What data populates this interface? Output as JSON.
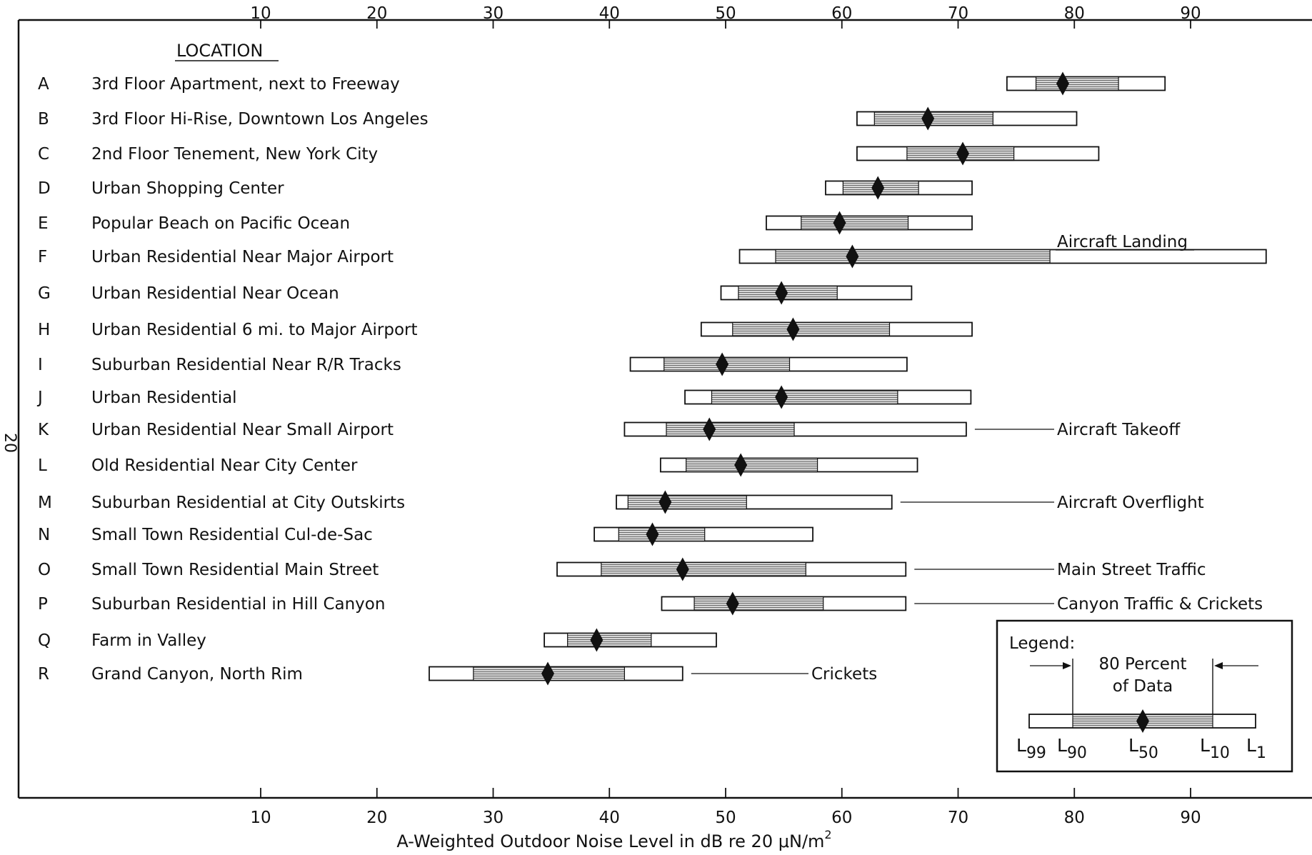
{
  "chart_data": {
    "type": "range",
    "title": "",
    "header_label": "LOCATION",
    "xlabel": "A-Weighted Outdoor Noise Level in dB re 20 μN/m",
    "xlabel_superscript": "2",
    "side_mark": "20",
    "xlim": [
      -12,
      98
    ],
    "xticks": [
      10,
      20,
      30,
      40,
      50,
      60,
      70,
      80,
      90
    ],
    "locations": [
      {
        "letter": "A",
        "name": "3rd Floor Apartment, next to Freeway",
        "L99": 74.2,
        "L90": 76.7,
        "L50": 79.0,
        "L10": 83.8,
        "L1": 87.8,
        "annotation": ""
      },
      {
        "letter": "B",
        "name": "3rd Floor Hi-Rise, Downtown Los Angeles",
        "L99": 61.3,
        "L90": 62.8,
        "L50": 67.4,
        "L10": 73.0,
        "L1": 80.2,
        "annotation": ""
      },
      {
        "letter": "C",
        "name": "2nd Floor Tenement, New York City",
        "L99": 61.3,
        "L90": 65.6,
        "L50": 70.4,
        "L10": 74.8,
        "L1": 82.1,
        "annotation": ""
      },
      {
        "letter": "D",
        "name": "Urban Shopping Center",
        "L99": 58.6,
        "L90": 60.1,
        "L50": 63.1,
        "L10": 66.6,
        "L1": 71.2,
        "annotation": ""
      },
      {
        "letter": "E",
        "name": "Popular Beach on Pacific Ocean",
        "L99": 53.5,
        "L90": 56.5,
        "L50": 59.8,
        "L10": 65.7,
        "L1": 71.2,
        "annotation": ""
      },
      {
        "letter": "F",
        "name": "Urban Residential Near Major Airport",
        "L99": 51.2,
        "L90": 54.3,
        "L50": 60.9,
        "L10": 77.9,
        "L1": 96.5,
        "annotation": "Aircraft Landing"
      },
      {
        "letter": "G",
        "name": "Urban Residential Near Ocean",
        "L99": 49.6,
        "L90": 51.1,
        "L50": 54.8,
        "L10": 59.6,
        "L1": 66.0,
        "annotation": ""
      },
      {
        "letter": "H",
        "name": "Urban Residential 6 mi. to Major Airport",
        "L99": 47.9,
        "L90": 50.6,
        "L50": 55.8,
        "L10": 64.1,
        "L1": 71.2,
        "annotation": ""
      },
      {
        "letter": "I",
        "name": "Suburban Residential Near R/R Tracks",
        "L99": 41.8,
        "L90": 44.7,
        "L50": 49.7,
        "L10": 55.5,
        "L1": 65.6,
        "annotation": ""
      },
      {
        "letter": "J",
        "name": "Urban Residential",
        "L99": 46.5,
        "L90": 48.8,
        "L50": 54.8,
        "L10": 64.8,
        "L1": 71.1,
        "annotation": ""
      },
      {
        "letter": "K",
        "name": "Urban Residential Near Small Airport",
        "L99": 41.3,
        "L90": 44.9,
        "L50": 48.6,
        "L10": 55.9,
        "L1": 70.7,
        "annotation": "Aircraft Takeoff"
      },
      {
        "letter": "L",
        "name": "Old Residential Near City Center",
        "L99": 44.4,
        "L90": 46.6,
        "L50": 51.3,
        "L10": 57.9,
        "L1": 66.5,
        "annotation": ""
      },
      {
        "letter": "M",
        "name": "Suburban Residential at City Outskirts",
        "L99": 40.6,
        "L90": 41.6,
        "L50": 44.8,
        "L10": 51.8,
        "L1": 64.3,
        "annotation": "Aircraft Overflight"
      },
      {
        "letter": "N",
        "name": "Small Town Residential Cul-de-Sac",
        "L99": 38.7,
        "L90": 40.8,
        "L50": 43.7,
        "L10": 48.2,
        "L1": 57.5,
        "annotation": ""
      },
      {
        "letter": "O",
        "name": "Small Town Residential Main Street",
        "L99": 35.5,
        "L90": 39.3,
        "L50": 46.3,
        "L10": 56.9,
        "L1": 65.5,
        "annotation": "Main Street Traffic"
      },
      {
        "letter": "P",
        "name": "Suburban Residential in Hill Canyon",
        "L99": 44.5,
        "L90": 47.3,
        "L50": 50.6,
        "L10": 58.4,
        "L1": 65.5,
        "annotation": "Canyon Traffic & Crickets"
      },
      {
        "letter": "Q",
        "name": "Farm in Valley",
        "L99": 34.4,
        "L90": 36.4,
        "L50": 38.9,
        "L10": 43.6,
        "L1": 49.2,
        "annotation": ""
      },
      {
        "letter": "R",
        "name": "Grand Canyon, North Rim",
        "L99": 24.5,
        "L90": 28.3,
        "L50": 34.7,
        "L10": 41.3,
        "L1": 46.3,
        "annotation": "Crickets"
      }
    ],
    "legend": {
      "title": "Legend:",
      "caption_line1": "80 Percent",
      "caption_line2": "of Data",
      "labels": [
        {
          "base": "L",
          "sub": "99"
        },
        {
          "base": "L",
          "sub": "90"
        },
        {
          "base": "L",
          "sub": "50"
        },
        {
          "base": "L",
          "sub": "10"
        },
        {
          "base": "L",
          "sub": "1"
        }
      ]
    },
    "colors": {
      "ink": "#111111",
      "hatch": "#9a9a9a",
      "fill": "#ffffff"
    }
  }
}
